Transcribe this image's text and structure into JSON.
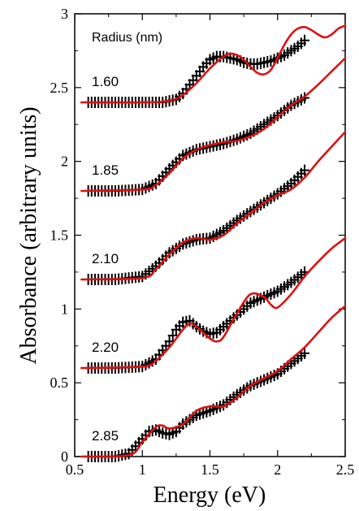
{
  "chart_data": {
    "type": "line",
    "xlabel": "Energy (eV)",
    "ylabel": "Absorbance (arbitrary units)",
    "xlim": [
      0.5,
      2.5
    ],
    "ylim": [
      0,
      3
    ],
    "xticks": [
      "0.5",
      "1",
      "1.5",
      "2",
      "2.5"
    ],
    "yticks": [
      "0",
      "0.5",
      "1",
      "1.5",
      "2",
      "2.5",
      "3"
    ],
    "legend_title": "Radius (nm)",
    "colors": {
      "experiment": "#000000",
      "theory": "#dd1111"
    },
    "series": [
      {
        "label": "1.60",
        "theory": {
          "x": [
            0.55,
            1.0,
            1.2,
            1.3,
            1.4,
            1.5,
            1.6,
            1.65,
            1.7,
            1.75,
            1.8,
            1.85,
            1.9,
            1.95,
            2.0,
            2.05,
            2.1,
            2.15,
            2.2,
            2.25,
            2.3,
            2.35,
            2.4,
            2.45,
            2.5
          ],
          "y": [
            2.4,
            2.4,
            2.41,
            2.45,
            2.53,
            2.63,
            2.71,
            2.73,
            2.72,
            2.69,
            2.64,
            2.6,
            2.59,
            2.62,
            2.7,
            2.79,
            2.86,
            2.9,
            2.91,
            2.89,
            2.86,
            2.84,
            2.86,
            2.9,
            2.92
          ]
        },
        "experiment": {
          "x": [
            0.6,
            0.8,
            1.0,
            1.15,
            1.25,
            1.3,
            1.35,
            1.4,
            1.45,
            1.5,
            1.55,
            1.6,
            1.65,
            1.7,
            1.75,
            1.8,
            1.85,
            1.9,
            1.95,
            2.0,
            2.05,
            2.1,
            2.15,
            2.2
          ],
          "y": [
            2.4,
            2.4,
            2.4,
            2.4,
            2.42,
            2.46,
            2.52,
            2.58,
            2.64,
            2.69,
            2.71,
            2.71,
            2.7,
            2.69,
            2.67,
            2.66,
            2.66,
            2.67,
            2.68,
            2.7,
            2.72,
            2.75,
            2.78,
            2.82
          ]
        }
      },
      {
        "label": "1.85",
        "theory": {
          "x": [
            0.55,
            1.0,
            1.1,
            1.2,
            1.3,
            1.4,
            1.5,
            1.6,
            1.7,
            1.8,
            1.9,
            2.0,
            2.1,
            2.2,
            2.3,
            2.4,
            2.5
          ],
          "y": [
            1.8,
            1.81,
            1.84,
            1.92,
            2.02,
            2.08,
            2.11,
            2.13,
            2.14,
            2.17,
            2.22,
            2.3,
            2.38,
            2.44,
            2.52,
            2.61,
            2.7
          ]
        },
        "experiment": {
          "x": [
            0.6,
            0.8,
            1.0,
            1.1,
            1.2,
            1.3,
            1.4,
            1.5,
            1.6,
            1.7,
            1.8,
            1.9,
            2.0,
            2.1,
            2.2
          ],
          "y": [
            1.8,
            1.8,
            1.81,
            1.85,
            1.95,
            2.04,
            2.08,
            2.1,
            2.12,
            2.15,
            2.19,
            2.25,
            2.31,
            2.38,
            2.43
          ]
        }
      },
      {
        "label": "2.10",
        "theory": {
          "x": [
            0.55,
            1.0,
            1.1,
            1.2,
            1.3,
            1.4,
            1.5,
            1.6,
            1.7,
            1.8,
            1.9,
            2.0,
            2.1,
            2.2,
            2.3,
            2.4,
            2.5
          ],
          "y": [
            1.2,
            1.21,
            1.27,
            1.37,
            1.45,
            1.48,
            1.47,
            1.5,
            1.58,
            1.65,
            1.72,
            1.77,
            1.81,
            1.89,
            2.0,
            2.1,
            2.2
          ]
        },
        "experiment": {
          "x": [
            0.6,
            0.8,
            1.0,
            1.1,
            1.2,
            1.3,
            1.4,
            1.5,
            1.6,
            1.7,
            1.8,
            1.9,
            2.0,
            2.1,
            2.2
          ],
          "y": [
            1.2,
            1.2,
            1.22,
            1.29,
            1.38,
            1.44,
            1.47,
            1.48,
            1.53,
            1.6,
            1.66,
            1.72,
            1.78,
            1.85,
            1.94
          ]
        }
      },
      {
        "label": "2.20",
        "theory": {
          "x": [
            0.55,
            1.0,
            1.1,
            1.2,
            1.3,
            1.35,
            1.4,
            1.5,
            1.55,
            1.6,
            1.7,
            1.8,
            1.9,
            1.95,
            2.0,
            2.1,
            2.2,
            2.3,
            2.4,
            2.5
          ],
          "y": [
            0.6,
            0.61,
            0.65,
            0.74,
            0.86,
            0.9,
            0.88,
            0.8,
            0.78,
            0.81,
            0.97,
            1.1,
            1.08,
            1.03,
            1.01,
            1.1,
            1.22,
            1.32,
            1.41,
            1.48
          ]
        },
        "experiment": {
          "x": [
            0.6,
            0.8,
            1.0,
            1.1,
            1.2,
            1.25,
            1.3,
            1.35,
            1.4,
            1.45,
            1.5,
            1.55,
            1.6,
            1.7,
            1.8,
            1.9,
            2.0,
            2.1,
            2.2
          ],
          "y": [
            0.6,
            0.6,
            0.61,
            0.66,
            0.78,
            0.86,
            0.91,
            0.92,
            0.88,
            0.85,
            0.83,
            0.84,
            0.88,
            0.96,
            1.04,
            1.08,
            1.12,
            1.18,
            1.25
          ]
        }
      },
      {
        "label": "2.85",
        "theory": {
          "x": [
            0.55,
            0.9,
            1.0,
            1.1,
            1.15,
            1.2,
            1.3,
            1.4,
            1.5,
            1.6,
            1.7,
            1.8,
            1.9,
            2.0,
            2.1,
            2.2,
            2.3,
            2.4,
            2.5
          ],
          "y": [
            0.0,
            0.01,
            0.1,
            0.2,
            0.21,
            0.19,
            0.22,
            0.31,
            0.34,
            0.34,
            0.4,
            0.48,
            0.53,
            0.58,
            0.66,
            0.74,
            0.84,
            0.94,
            1.02
          ]
        },
        "experiment": {
          "x": [
            0.6,
            0.8,
            0.9,
            1.0,
            1.05,
            1.1,
            1.15,
            1.2,
            1.25,
            1.3,
            1.4,
            1.5,
            1.6,
            1.7,
            1.8,
            1.9,
            2.0,
            2.1,
            2.2
          ],
          "y": [
            0.0,
            0.0,
            0.02,
            0.12,
            0.17,
            0.18,
            0.16,
            0.15,
            0.17,
            0.22,
            0.28,
            0.31,
            0.35,
            0.42,
            0.48,
            0.52,
            0.56,
            0.63,
            0.7
          ]
        }
      }
    ]
  }
}
